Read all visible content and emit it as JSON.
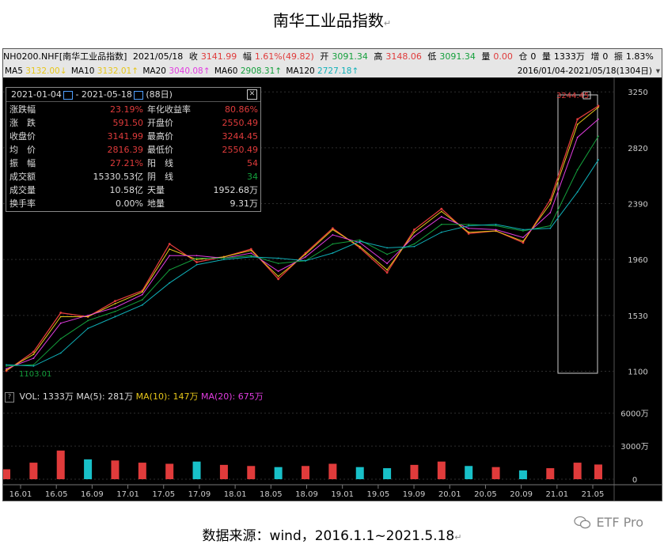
{
  "title": "南华工业品指数",
  "return_mark": "↵",
  "source": "数据来源：wind，2016.1.1~2021.5.18",
  "watermark": "ETF Pro",
  "topbar": {
    "code": "NH0200.NHF[南华工业品指数]",
    "date": "2021/05/18",
    "close_label": "收",
    "close_value": "3141.99",
    "change_label": "幅",
    "change_value": "1.61%(49.82)",
    "open_label": "开",
    "open_value": "3091.34",
    "high_label": "高",
    "high_value": "3148.06",
    "low_label": "低",
    "low_value": "3091.34",
    "vol_label": "量",
    "vol_value": "0.00",
    "oi_label": "仓",
    "oi_value": "0",
    "amt_label": "量",
    "amt_value": "1333万",
    "inc_label": "增",
    "inc_value": "0",
    "amp_label": "振",
    "amp_value": "1.83%"
  },
  "ma_bar": {
    "items": [
      {
        "label": "MA5",
        "value": "3132.00↓",
        "color": "#e6c619"
      },
      {
        "label": "MA10",
        "value": "3132.01↑",
        "color": "#e6c619"
      },
      {
        "label": "MA20",
        "value": "3040.08↑",
        "color": "#e13ce0"
      },
      {
        "label": "MA60",
        "value": "2908.31↑",
        "color": "#14a03c"
      },
      {
        "label": "MA120",
        "value": "2727.18↑",
        "color": "#0fb0b8"
      }
    ],
    "range": "2016/01/04-2021/05/18(1304日)"
  },
  "infobox": {
    "start": "2021-01-04",
    "sep": "-",
    "end": "2021-05-18",
    "days": "(88日)",
    "rows": [
      {
        "k1": "涨跌幅",
        "v1": "23.19%",
        "c1": "#e03b3b",
        "k2": "年化收益率",
        "v2": "80.86%",
        "c2": "#e03b3b"
      },
      {
        "k1": "涨　跌",
        "v1": "591.50",
        "c1": "#e03b3b",
        "k2": "开盘价",
        "v2": "2550.49",
        "c2": "#e03b3b"
      },
      {
        "k1": "收盘价",
        "v1": "3141.99",
        "c1": "#e03b3b",
        "k2": "最高价",
        "v2": "3244.45",
        "c2": "#e03b3b"
      },
      {
        "k1": "均　价",
        "v1": "2816.39",
        "c1": "#e03b3b",
        "k2": "最低价",
        "v2": "2550.49",
        "c2": "#e03b3b"
      },
      {
        "k1": "振　幅",
        "v1": "27.21%",
        "c1": "#e03b3b",
        "k2": "阳　线",
        "v2": "54",
        "c2": "#e03b3b"
      },
      {
        "k1": "成交额",
        "v1": "15330.53亿",
        "c1": "#dddddd",
        "k2": "阴　线",
        "v2": "34",
        "c2": "#14a03c"
      },
      {
        "k1": "成交量",
        "v1": "10.58亿",
        "c1": "#dddddd",
        "k2": "天量",
        "v2": "1952.68万",
        "c2": "#dddddd"
      },
      {
        "k1": "换手率",
        "v1": "0.00%",
        "c1": "#dddddd",
        "k2": "地量",
        "v2": "9.31万",
        "c2": "#dddddd"
      }
    ]
  },
  "volbar": {
    "q": "?",
    "vol_label": "VOL:",
    "vol_value": "1333万",
    "ma5_label": "MA(5):",
    "ma5_value": "281万",
    "ma10_label": "MA(10):",
    "ma10_value": "147万",
    "ma20_label": "MA(20):",
    "ma20_value": "675万"
  },
  "chart_data": {
    "type": "line",
    "y_ticks": [
      "3250",
      "2820",
      "2390",
      "1960",
      "1530",
      "1100"
    ],
    "y_tick_values": [
      3250,
      2820,
      2390,
      1960,
      1530,
      1100
    ],
    "ylim": [
      1030,
      3300
    ],
    "vol_ticks": [
      "6000万",
      "3000万",
      "0"
    ],
    "vol_tick_values": [
      6000,
      3000,
      0
    ],
    "vol_ylim": [
      0,
      6600
    ],
    "x_ticks": [
      "16.01",
      "16.05",
      "16.09",
      "17.01",
      "17.05",
      "17.09",
      "18.01",
      "18.05",
      "18.09",
      "19.01",
      "19.05",
      "19.09",
      "20.01",
      "20.05",
      "20.09",
      "21.01",
      "21.05"
    ],
    "min_label": "1103.01",
    "max_label": "3244.45",
    "highlight_range": [
      "2021-01-04",
      "2021-05-18"
    ],
    "series": [
      {
        "color": "#e03b3b",
        "x": [
          0,
          3,
          6,
          9,
          12,
          15,
          18,
          21,
          24,
          27,
          30,
          33,
          36,
          39,
          42,
          45,
          48,
          51,
          54,
          57,
          60,
          63,
          65.3
        ],
        "values": [
          1103,
          1250,
          1550,
          1520,
          1640,
          1720,
          2080,
          1940,
          1980,
          2040,
          1810,
          2010,
          2200,
          2050,
          1860,
          2190,
          2350,
          2160,
          2180,
          2090,
          2420,
          3040,
          3142
        ]
      },
      {
        "name": "MA5",
        "color": "#e6c619",
        "x": [
          0,
          3,
          6,
          9,
          12,
          15,
          18,
          21,
          24,
          27,
          30,
          33,
          36,
          39,
          42,
          45,
          48,
          51,
          54,
          57,
          60,
          63,
          65.3
        ],
        "values": [
          1110,
          1230,
          1520,
          1520,
          1620,
          1710,
          2040,
          1960,
          1980,
          2030,
          1830,
          2000,
          2190,
          2060,
          1880,
          2170,
          2330,
          2170,
          2180,
          2100,
          2390,
          3000,
          3132
        ]
      },
      {
        "name": "MA20",
        "color": "#e13ce0",
        "x": [
          0,
          3,
          6,
          9,
          12,
          15,
          18,
          21,
          24,
          27,
          30,
          33,
          36,
          39,
          42,
          45,
          48,
          51,
          54,
          57,
          60,
          63,
          65.3
        ],
        "values": [
          1120,
          1200,
          1470,
          1530,
          1590,
          1690,
          1990,
          1990,
          1970,
          2010,
          1870,
          1980,
          2150,
          2090,
          1930,
          2140,
          2290,
          2200,
          2190,
          2130,
          2320,
          2900,
          3040
        ]
      },
      {
        "name": "MA60",
        "color": "#14a03c",
        "x": [
          0,
          3,
          6,
          9,
          12,
          15,
          18,
          21,
          24,
          27,
          30,
          33,
          36,
          39,
          42,
          45,
          48,
          51,
          54,
          57,
          60,
          63,
          65.3
        ],
        "values": [
          1140,
          1150,
          1350,
          1490,
          1560,
          1650,
          1880,
          1970,
          1970,
          1990,
          1930,
          1950,
          2080,
          2110,
          2000,
          2080,
          2230,
          2230,
          2220,
          2180,
          2220,
          2650,
          2908
        ]
      },
      {
        "name": "MA120",
        "color": "#0fb0b8",
        "x": [
          0,
          3,
          6,
          9,
          12,
          15,
          18,
          21,
          24,
          27,
          30,
          33,
          36,
          39,
          42,
          45,
          48,
          51,
          54,
          57,
          60,
          63,
          65.3
        ],
        "values": [
          1150,
          1140,
          1240,
          1430,
          1520,
          1610,
          1780,
          1920,
          1960,
          1980,
          1970,
          1950,
          2010,
          2100,
          2050,
          2060,
          2170,
          2220,
          2230,
          2190,
          2200,
          2480,
          2727
        ]
      }
    ],
    "volume": {
      "x": [
        0,
        3,
        6,
        9,
        12,
        15,
        18,
        21,
        24,
        27,
        30,
        33,
        36,
        39,
        42,
        45,
        48,
        51,
        54,
        57,
        60,
        63,
        65.3
      ],
      "values": [
        900,
        1500,
        2600,
        1800,
        1700,
        1500,
        1400,
        1600,
        1300,
        1200,
        1100,
        1200,
        1400,
        1100,
        1000,
        1300,
        1600,
        1200,
        1100,
        800,
        1000,
        1500,
        1333
      ]
    }
  }
}
